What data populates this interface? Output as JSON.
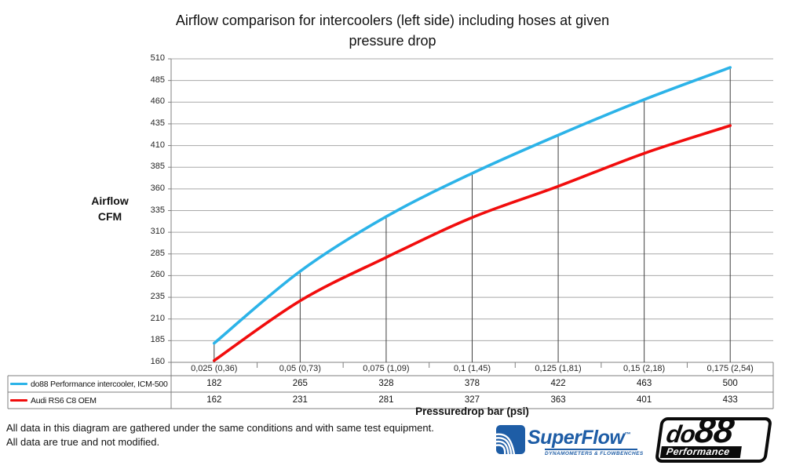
{
  "header": {
    "title": "Airflow comparison for intercoolers (left side) including hoses at given pressure drop",
    "title_lines": [
      "Airflow comparison for intercoolers (left side) including hoses at given",
      "pressure drop"
    ]
  },
  "y_axis": {
    "label_lines": [
      "Airflow",
      "CFM"
    ]
  },
  "x_axis": {
    "title": "Pressuredrop bar (psi)"
  },
  "footer": {
    "line1": "All data in this diagram are gathered under the same conditions and with same test equipment.",
    "line2": "All data are true and not modified."
  },
  "logos": {
    "superflow": {
      "name": "SuperFlow",
      "tm": "™",
      "tagline": "DYNAMOMETERS & FLOWBENCHES"
    },
    "do88": {
      "part1": "do",
      "part2": "88",
      "tagline": "Performance"
    }
  },
  "chart_data": {
    "type": "line",
    "title": "Airflow comparison for intercoolers (left side) including hoses at given pressure drop",
    "xlabel": "Pressuredrop bar (psi)",
    "ylabel": "Airflow CFM",
    "categories": [
      "0,025 (0,36)",
      "0,05 (0,73)",
      "0,075 (1,09)",
      "0,1 (1,45)",
      "0,125 (1,81)",
      "0,15 (2,18)",
      "0,175 (2,54)"
    ],
    "series": [
      {
        "name": "do88 Performance intercooler, ICM-500",
        "color": "#2cb3e8",
        "values": [
          182,
          265,
          328,
          378,
          422,
          463,
          500
        ]
      },
      {
        "name": "Audi RS6 C8 OEM",
        "color": "#f10d0d",
        "values": [
          162,
          231,
          281,
          327,
          363,
          401,
          433
        ]
      }
    ],
    "ylim": [
      160,
      510
    ],
    "yticks": [
      160,
      185,
      210,
      235,
      260,
      285,
      310,
      335,
      360,
      385,
      410,
      435,
      460,
      485,
      510
    ],
    "grid": true,
    "drop_lines": true,
    "legend_position": "table-left",
    "colors": {
      "gridline": "#a8a8a8",
      "axis": "#808080",
      "drop_line": "#3f3f3f",
      "table_border": "#7f7f7f"
    }
  }
}
